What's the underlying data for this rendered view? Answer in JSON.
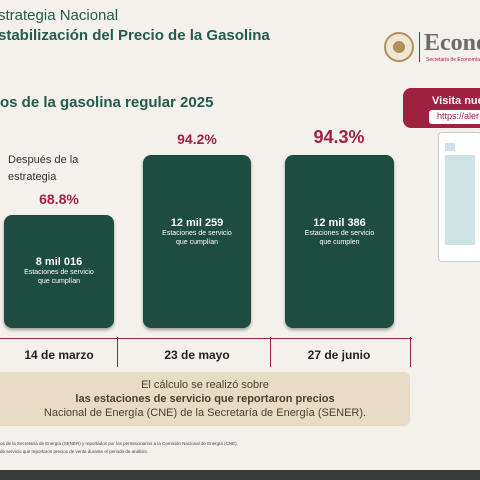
{
  "header": {
    "title_line1": "strategia Nacional",
    "title_line2": "stabilización del Precio de la Gasolina",
    "logo_text": "Econo",
    "logo_sub": "Secretaría de Economía"
  },
  "subtitle": "os de la gasolina regular 2025",
  "visit": {
    "title": "Visita nue",
    "url": "https://aler"
  },
  "after_label": {
    "line1": "Después de la",
    "line2": "estrategia"
  },
  "colors": {
    "accent": "#9f2241",
    "bar": "#1d4c40",
    "title": "#235b4e",
    "note_bg": "#e9dcc5"
  },
  "chart_data": {
    "type": "bar",
    "categories": [
      "14 de marzo",
      "23 de mayo",
      "27 de junio"
    ],
    "values": [
      68.8,
      94.2,
      94.3
    ],
    "value_labels": [
      "68.8%",
      "94.2%",
      "94.3%"
    ],
    "stations": [
      "8 mil 016",
      "12 mil 259",
      "12 mil 386"
    ],
    "station_desc": [
      [
        "Estaciones de servicio",
        "que cumplían"
      ],
      [
        "Estaciones de servicio",
        "que cumplían"
      ],
      [
        "Estaciones de servicio",
        "que cumplen"
      ]
    ],
    "ylim": [
      0,
      100
    ]
  },
  "note": {
    "line1": "El cálculo se realizó sobre",
    "line2": "las estaciones de servicio que reportaron precios",
    "line3": "Nacional de Energía (CNE) de la Secretaría de Energía (SENER)."
  },
  "footnotes": {
    "line1": "os de la Secretaría de Energía (SENER) y reportados por los permisionarios a la Comisión Nacional de Energía (CNE).",
    "line2": "de servicio que reportaron precios de venta durante el periodo de análisis."
  }
}
